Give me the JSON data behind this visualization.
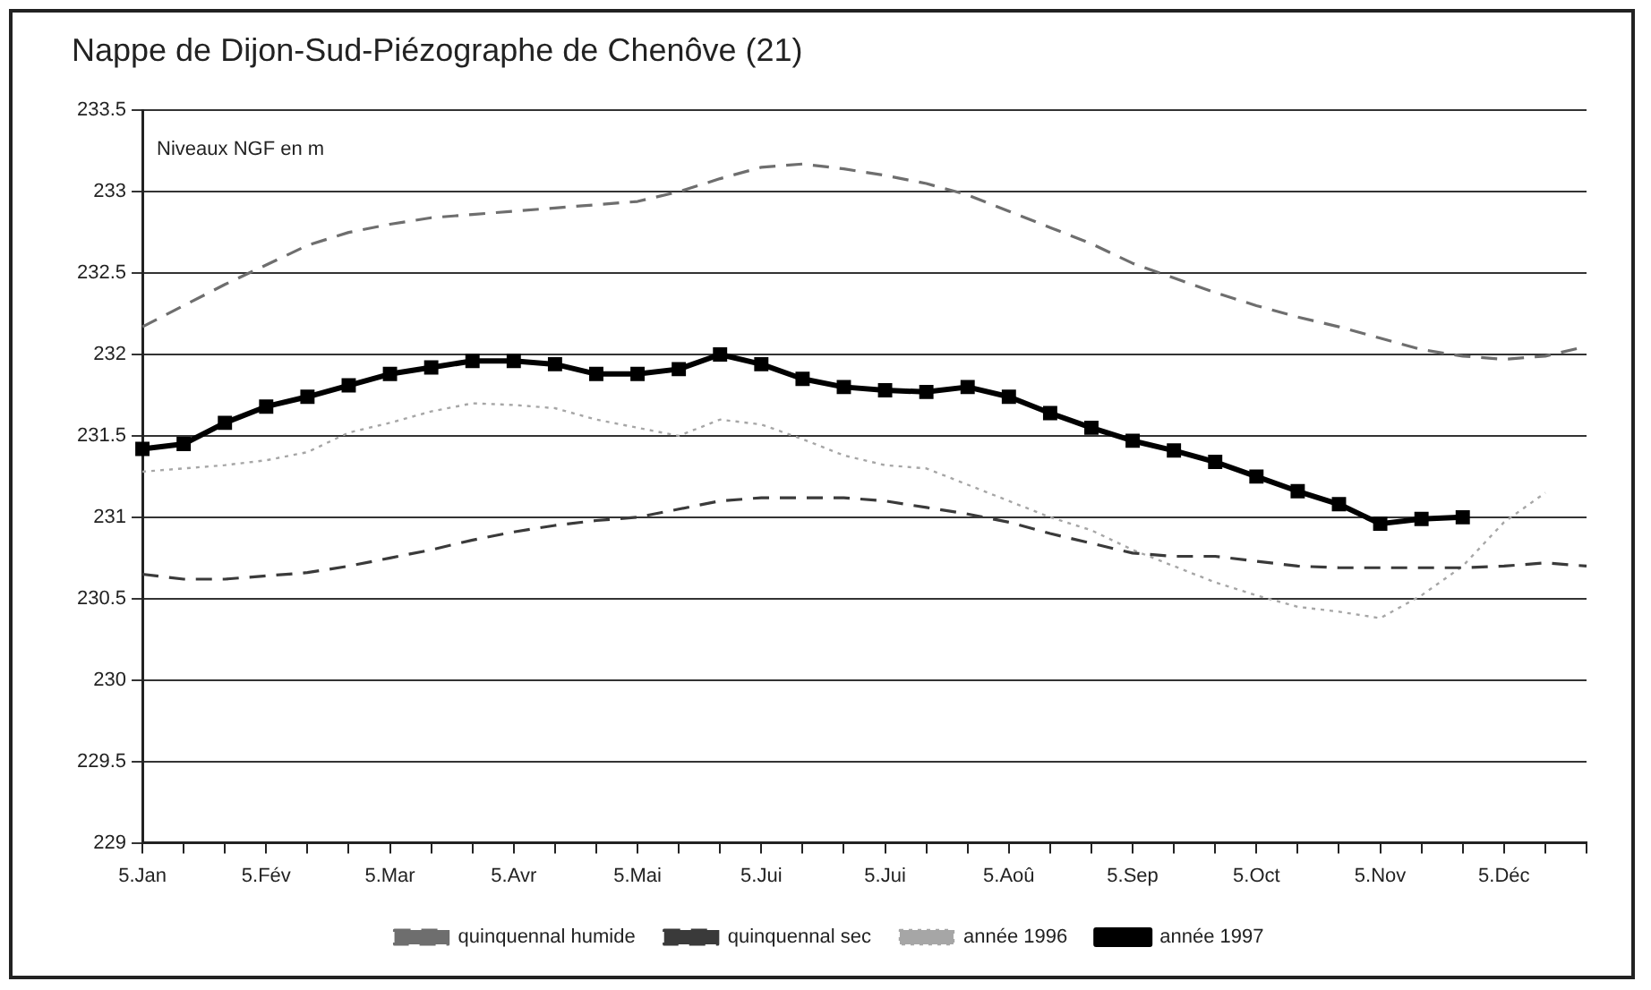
{
  "chart_data": {
    "type": "line",
    "title": "Nappe de Dijon-Sud-Piézographe de Chenôve (21)",
    "ylabel": "Niveaux NGF en m",
    "categories": [
      "5.Jan",
      null,
      null,
      "5.Fév",
      null,
      null,
      "5.Mar",
      null,
      null,
      "5.Avr",
      null,
      null,
      "5.Mai",
      null,
      null,
      "5.Jui",
      null,
      null,
      "5.Jui",
      null,
      null,
      "5.Aoû",
      null,
      null,
      "5.Sep",
      null,
      null,
      "5.Oct",
      null,
      null,
      "5.Nov",
      null,
      null,
      "5.Déc",
      null,
      null
    ],
    "ylim": [
      229,
      233.5
    ],
    "yticks": [
      229,
      229.5,
      230,
      230.5,
      231,
      231.5,
      232,
      232.5,
      233,
      233.5
    ],
    "grid": "y",
    "legend": "bottom",
    "series": [
      {
        "name": "quinquennal humide",
        "color": "#6e6e6e",
        "line_style": "dashed",
        "marker": "none",
        "values": [
          232.17,
          232.3,
          232.43,
          232.55,
          232.67,
          232.75,
          232.8,
          232.84,
          232.86,
          232.88,
          232.9,
          232.92,
          232.94,
          233.0,
          233.08,
          233.15,
          233.17,
          233.14,
          233.1,
          233.05,
          232.98,
          232.88,
          232.78,
          232.68,
          232.56,
          232.47,
          232.38,
          232.3,
          232.23,
          232.17,
          232.1,
          232.03,
          231.99,
          231.97,
          231.99,
          232.05
        ]
      },
      {
        "name": "quinquennal sec",
        "color": "#3a3a3a",
        "line_style": "dashed",
        "marker": "none",
        "values": [
          230.65,
          230.62,
          230.62,
          230.64,
          230.66,
          230.7,
          230.75,
          230.8,
          230.86,
          230.91,
          230.95,
          230.98,
          231.0,
          231.05,
          231.1,
          231.12,
          231.12,
          231.12,
          231.1,
          231.06,
          231.02,
          230.97,
          230.9,
          230.84,
          230.78,
          230.76,
          230.76,
          230.73,
          230.7,
          230.69,
          230.69,
          230.69,
          230.69,
          230.7,
          230.72,
          230.7
        ]
      },
      {
        "name": "année 1996",
        "color": "#a6a6a6",
        "line_style": "dotted",
        "marker": "none",
        "values": [
          231.28,
          231.3,
          231.32,
          231.35,
          231.4,
          231.52,
          231.58,
          231.65,
          231.7,
          231.69,
          231.67,
          231.6,
          231.55,
          231.5,
          231.6,
          231.57,
          231.48,
          231.38,
          231.32,
          231.3,
          231.2,
          231.1,
          231.0,
          230.92,
          230.8,
          230.7,
          230.6,
          230.52,
          230.45,
          230.42,
          230.38,
          230.52,
          230.7,
          230.97,
          231.15,
          null
        ]
      },
      {
        "name": "année 1997",
        "color": "#000000",
        "line_style": "solid",
        "marker": "square",
        "values": [
          231.42,
          231.45,
          231.58,
          231.68,
          231.74,
          231.81,
          231.88,
          231.92,
          231.96,
          231.96,
          231.94,
          231.88,
          231.88,
          231.91,
          232.0,
          231.94,
          231.85,
          231.8,
          231.78,
          231.77,
          231.8,
          231.74,
          231.64,
          231.55,
          231.47,
          231.41,
          231.34,
          231.25,
          231.16,
          231.08,
          230.96,
          230.99,
          231.0,
          null,
          null,
          null
        ]
      }
    ]
  }
}
